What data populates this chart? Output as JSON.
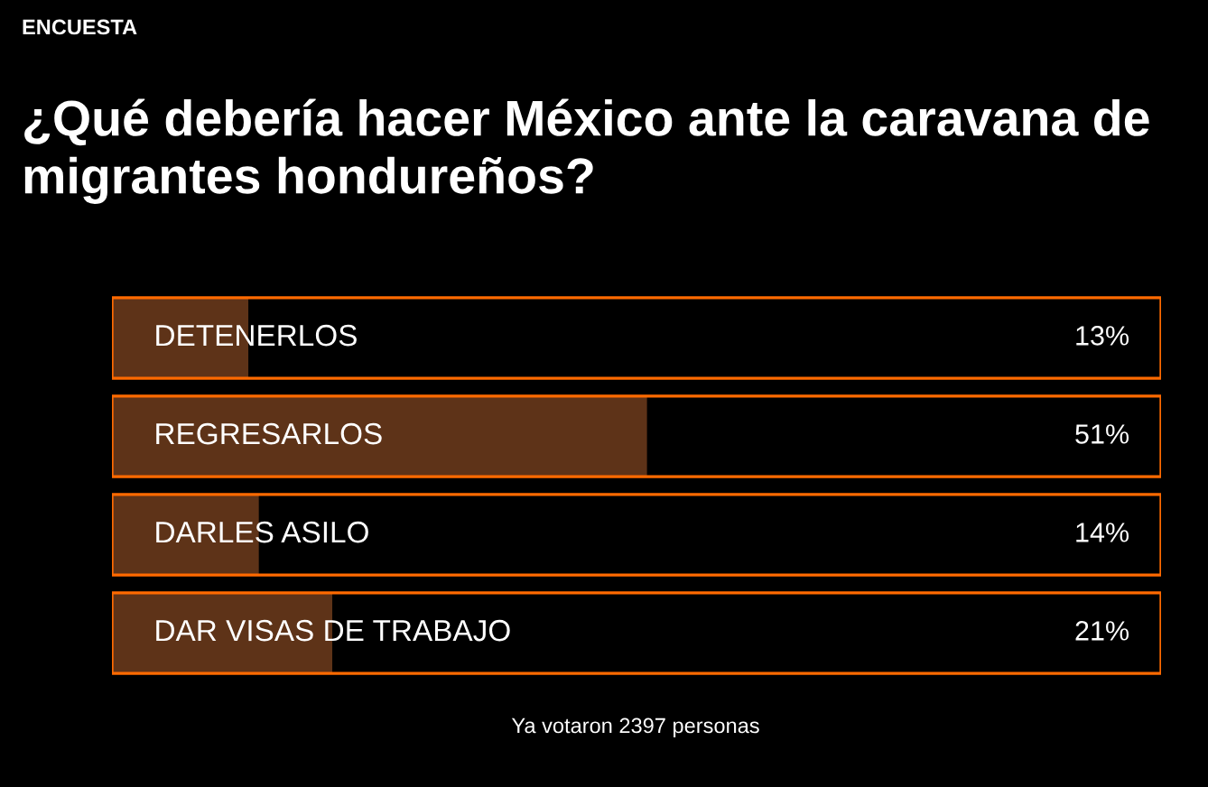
{
  "chart_data": {
    "type": "bar",
    "orientation": "horizontal",
    "subtitle": "ENCUESTA",
    "title": "¿Qué debería hacer México ante la caravana de migrantes hondureños?",
    "categories": [
      "DETENERLOS",
      "REGRESARLOS",
      "DARLES ASILO",
      "DAR VISAS DE TRABAJO"
    ],
    "values": [
      13,
      51,
      14,
      21
    ],
    "color": "#5e3318",
    "value_labels": [
      "13%",
      "51%",
      "14%",
      "21%"
    ],
    "xlim": [
      0,
      100
    ],
    "annotations": [
      "Ya votaron 2397 personas"
    ]
  }
}
